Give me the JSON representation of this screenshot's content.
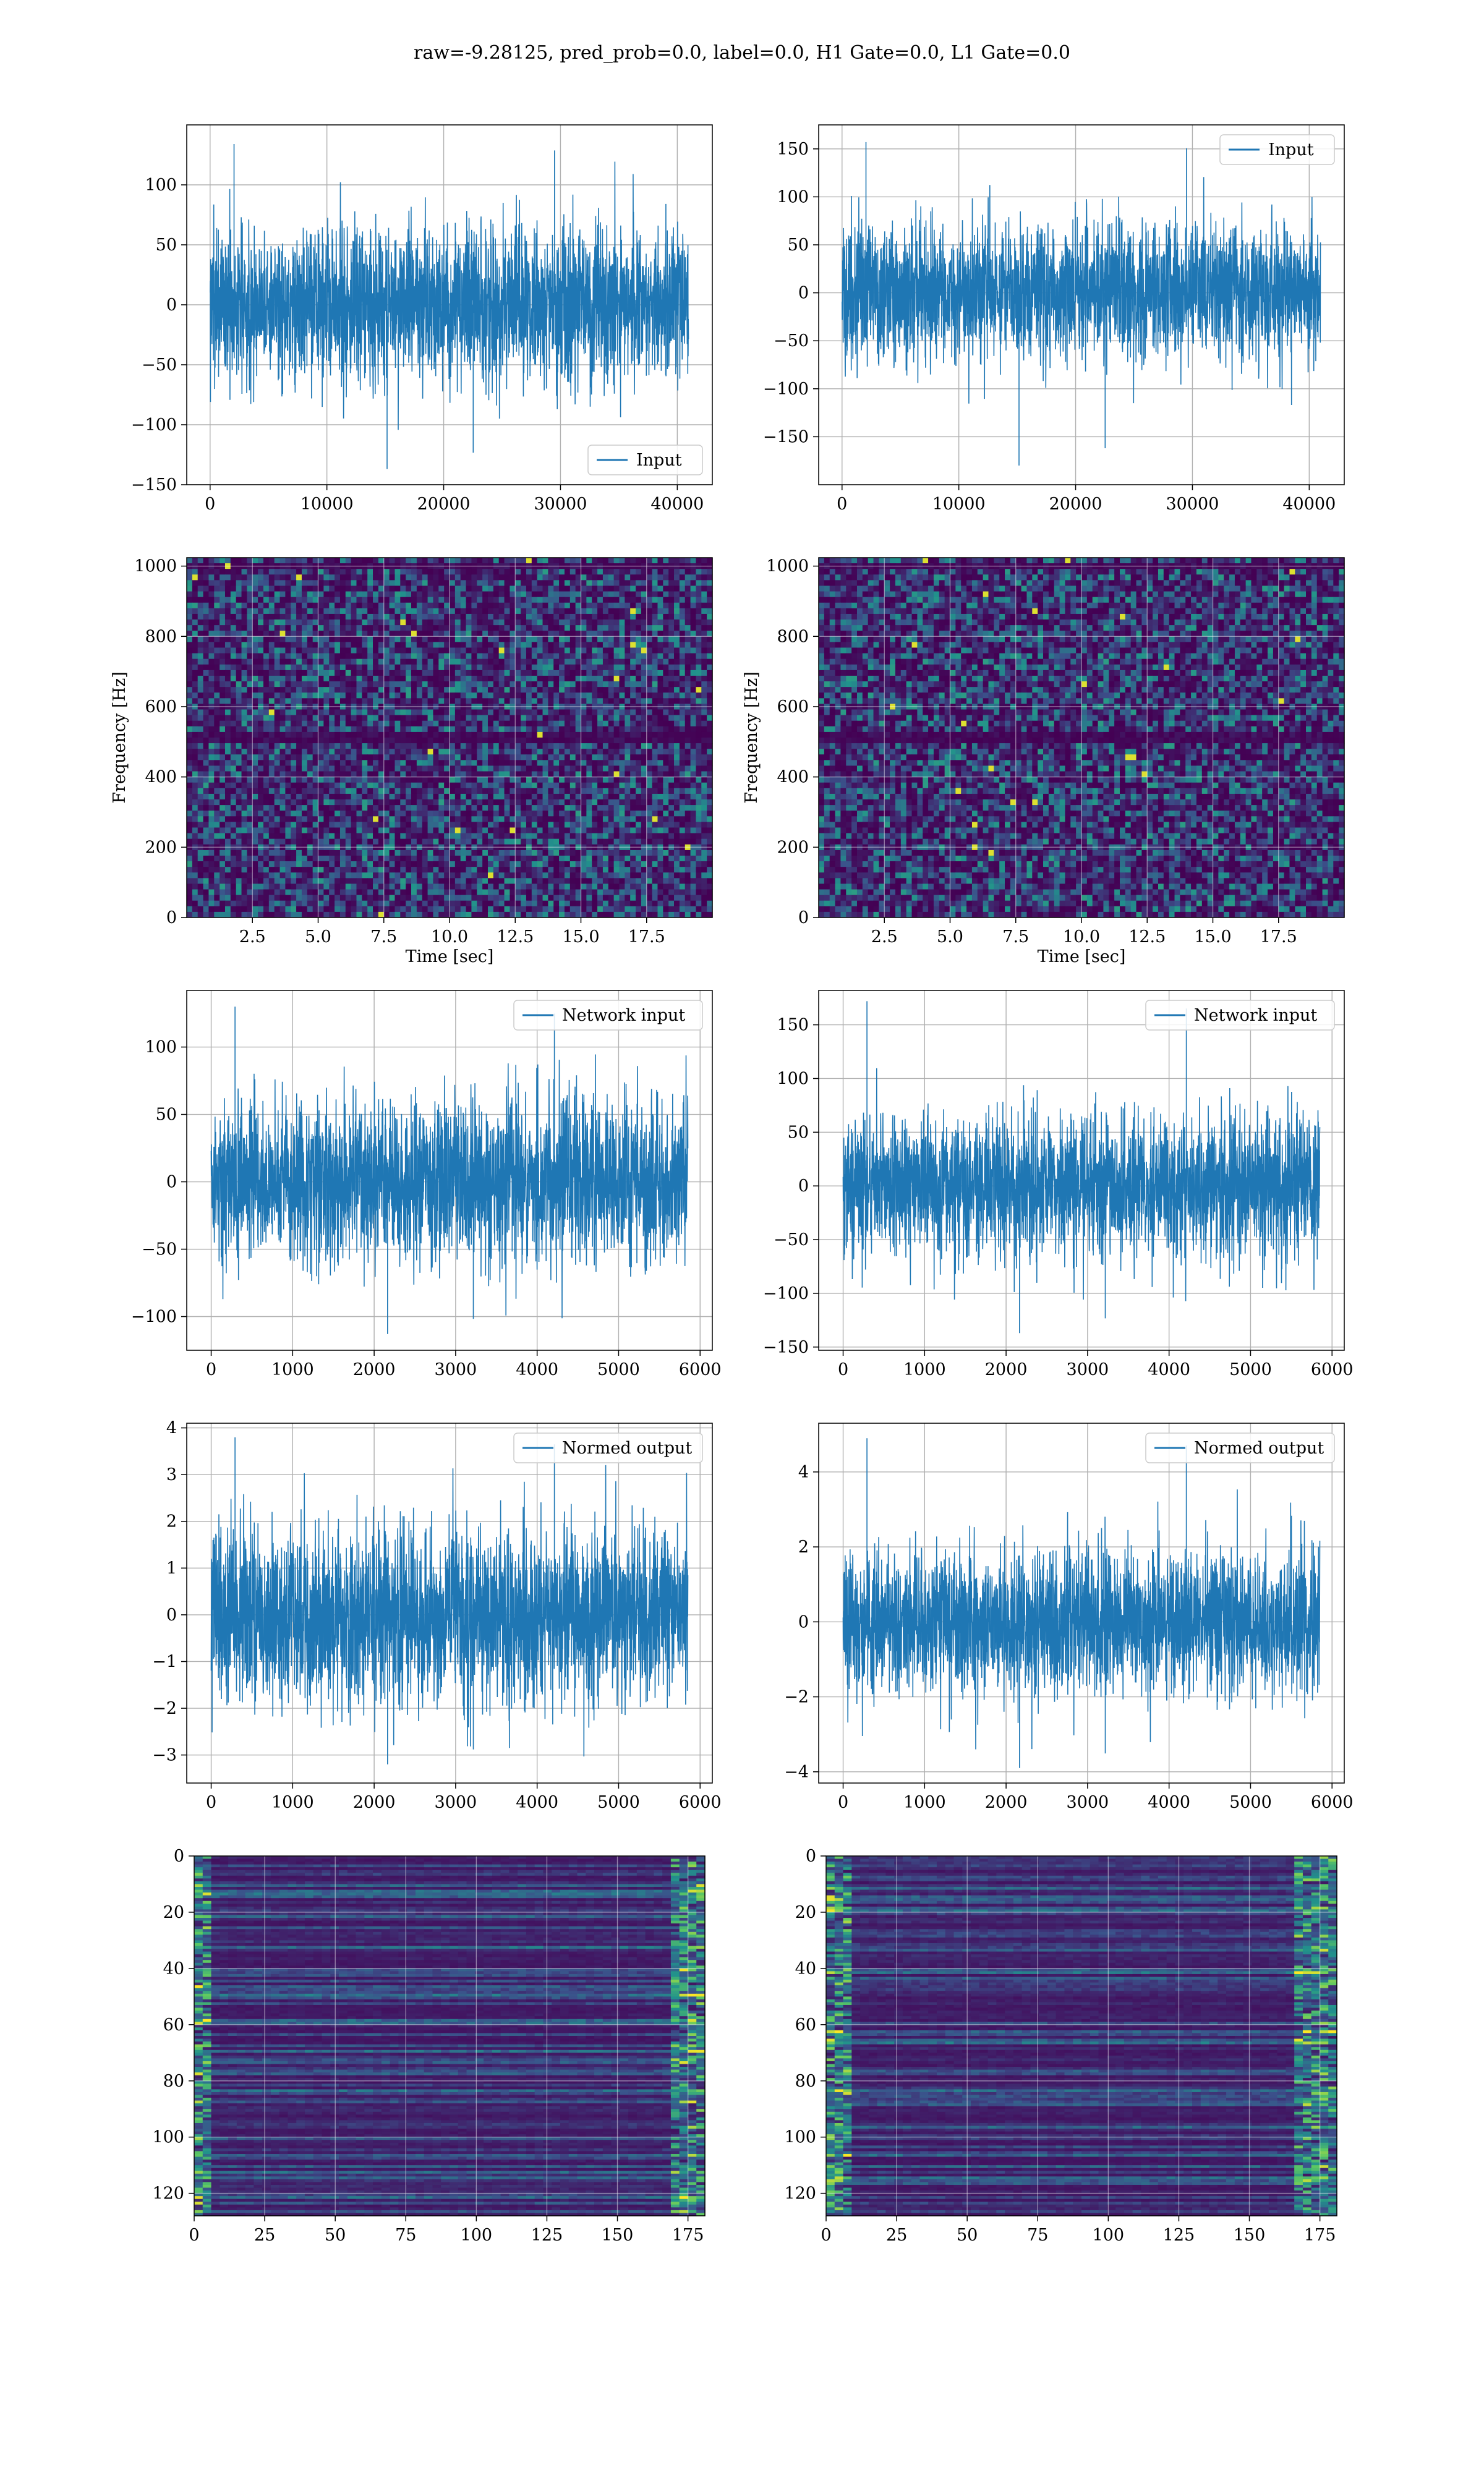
{
  "figure": {
    "title": "raw=-9.28125, pred_prob=0.0, label=0.0, H1 Gate=0.0, L1 Gate=0.0"
  },
  "colors": {
    "line": "#1f77b4",
    "grid": "#b0b0b0",
    "viridis_dark": "#440154",
    "viridis_low": "#3b0f70",
    "viridis_mid": "#21918c",
    "viridis_high": "#5ec962",
    "viridis_peak": "#fde725"
  },
  "chart_data": [
    {
      "id": "h1-input",
      "type": "line",
      "series": [
        {
          "name": "Input",
          "amplitude_std": 32,
          "x_range": [
            0,
            40960
          ],
          "y_extremes": [
            -137,
            134
          ]
        }
      ],
      "xlim": [
        -2000,
        43000
      ],
      "ylim": [
        -150,
        150
      ],
      "xticks": [
        0,
        10000,
        20000,
        30000,
        40000
      ],
      "xtick_labels": [
        "0",
        "10000",
        "20000",
        "30000",
        "40000"
      ],
      "yticks": [
        -150,
        -100,
        -50,
        0,
        50,
        100
      ],
      "ytick_labels": [
        "−150",
        "−100",
        "−50",
        "0",
        "50",
        "100"
      ],
      "legend": "lower-right",
      "grid": true,
      "xlabel": "",
      "ylabel": ""
    },
    {
      "id": "l1-input",
      "type": "line",
      "series": [
        {
          "name": "Input",
          "amplitude_std": 35,
          "x_range": [
            0,
            40960
          ],
          "y_extremes": [
            -180,
            157
          ]
        }
      ],
      "xlim": [
        -2000,
        43000
      ],
      "ylim": [
        -200,
        175
      ],
      "xticks": [
        0,
        10000,
        20000,
        30000,
        40000
      ],
      "xtick_labels": [
        "0",
        "10000",
        "20000",
        "30000",
        "40000"
      ],
      "yticks": [
        -150,
        -100,
        -50,
        0,
        50,
        100,
        150
      ],
      "ytick_labels": [
        "−150",
        "−100",
        "−50",
        "0",
        "50",
        "100",
        "150"
      ],
      "legend": "upper-right",
      "grid": true,
      "xlabel": "",
      "ylabel": ""
    },
    {
      "id": "h1-spectrogram",
      "type": "heatmap",
      "colormap": "viridis",
      "xlim": [
        0,
        20
      ],
      "ylim": [
        0,
        1024
      ],
      "xticks": [
        2.5,
        5.0,
        7.5,
        10.0,
        12.5,
        15.0,
        17.5
      ],
      "xtick_labels": [
        "2.5",
        "5.0",
        "7.5",
        "10.0",
        "12.5",
        "15.0",
        "17.5"
      ],
      "yticks": [
        0,
        200,
        400,
        600,
        800,
        1000
      ],
      "ytick_labels": [
        "0",
        "200",
        "400",
        "600",
        "800",
        "1000"
      ],
      "dark_bands_hz": [
        510,
        1000
      ],
      "xlabel": "Time [sec]",
      "ylabel": "Frequency [Hz]",
      "grid": true
    },
    {
      "id": "l1-spectrogram",
      "type": "heatmap",
      "colormap": "viridis",
      "xlim": [
        0,
        20
      ],
      "ylim": [
        0,
        1024
      ],
      "xticks": [
        2.5,
        5.0,
        7.5,
        10.0,
        12.5,
        15.0,
        17.5
      ],
      "xtick_labels": [
        "2.5",
        "5.0",
        "7.5",
        "10.0",
        "12.5",
        "15.0",
        "17.5"
      ],
      "yticks": [
        0,
        200,
        400,
        600,
        800,
        1000
      ],
      "ytick_labels": [
        "0",
        "200",
        "400",
        "600",
        "800",
        "1000"
      ],
      "dark_bands_hz": [
        510,
        1000
      ],
      "xlabel": "Time [sec]",
      "ylabel": "Frequency [Hz]",
      "grid": true
    },
    {
      "id": "h1-network-input",
      "type": "line",
      "series": [
        {
          "name": "Network input",
          "amplitude_std": 30,
          "x_range": [
            0,
            5850
          ],
          "y_extremes": [
            -113,
            130
          ]
        }
      ],
      "xlim": [
        -300,
        6150
      ],
      "ylim": [
        -125,
        142
      ],
      "xticks": [
        0,
        1000,
        2000,
        3000,
        4000,
        5000,
        6000
      ],
      "xtick_labels": [
        "0",
        "1000",
        "2000",
        "3000",
        "4000",
        "5000",
        "6000"
      ],
      "yticks": [
        -100,
        -50,
        0,
        50,
        100
      ],
      "ytick_labels": [
        "−100",
        "−50",
        "0",
        "50",
        "100"
      ],
      "legend": "upper-right",
      "grid": true,
      "xlabel": "",
      "ylabel": ""
    },
    {
      "id": "l1-network-input",
      "type": "line",
      "series": [
        {
          "name": "Network input",
          "amplitude_std": 32,
          "x_range": [
            0,
            5850
          ],
          "y_extremes": [
            -137,
            172
          ]
        }
      ],
      "xlim": [
        -300,
        6150
      ],
      "ylim": [
        -153,
        182
      ],
      "xticks": [
        0,
        1000,
        2000,
        3000,
        4000,
        5000,
        6000
      ],
      "xtick_labels": [
        "0",
        "1000",
        "2000",
        "3000",
        "4000",
        "5000",
        "6000"
      ],
      "yticks": [
        -150,
        -100,
        -50,
        0,
        50,
        100,
        150
      ],
      "ytick_labels": [
        "−150",
        "−100",
        "−50",
        "0",
        "50",
        "100",
        "150"
      ],
      "legend": "upper-right",
      "grid": true,
      "xlabel": "",
      "ylabel": ""
    },
    {
      "id": "h1-normed-output",
      "type": "line",
      "series": [
        {
          "name": "Normed output",
          "amplitude_std": 0.95,
          "x_range": [
            0,
            5850
          ],
          "y_extremes": [
            -3.2,
            3.8
          ]
        }
      ],
      "xlim": [
        -300,
        6150
      ],
      "ylim": [
        -3.6,
        4.1
      ],
      "xticks": [
        0,
        1000,
        2000,
        3000,
        4000,
        5000,
        6000
      ],
      "xtick_labels": [
        "0",
        "1000",
        "2000",
        "3000",
        "4000",
        "5000",
        "6000"
      ],
      "yticks": [
        -3,
        -2,
        -1,
        0,
        1,
        2,
        3,
        4
      ],
      "ytick_labels": [
        "−3",
        "−2",
        "−1",
        "0",
        "1",
        "2",
        "3",
        "4"
      ],
      "legend": "upper-right",
      "grid": true,
      "xlabel": "",
      "ylabel": ""
    },
    {
      "id": "l1-normed-output",
      "type": "line",
      "series": [
        {
          "name": "Normed output",
          "amplitude_std": 0.95,
          "x_range": [
            0,
            5850
          ],
          "y_extremes": [
            -3.9,
            4.9
          ]
        }
      ],
      "xlim": [
        -300,
        6150
      ],
      "ylim": [
        -4.3,
        5.3
      ],
      "xticks": [
        0,
        1000,
        2000,
        3000,
        4000,
        5000,
        6000
      ],
      "xtick_labels": [
        "0",
        "1000",
        "2000",
        "3000",
        "4000",
        "5000",
        "6000"
      ],
      "yticks": [
        -4,
        -2,
        0,
        2,
        4
      ],
      "ytick_labels": [
        "−4",
        "−2",
        "0",
        "2",
        "4"
      ],
      "legend": "upper-right",
      "grid": true,
      "xlabel": "",
      "ylabel": ""
    },
    {
      "id": "h1-feature-map",
      "type": "heatmap",
      "colormap": "viridis",
      "xlim": [
        0,
        181
      ],
      "ylim": [
        128,
        0
      ],
      "xticks": [
        0,
        25,
        50,
        75,
        100,
        125,
        150,
        175
      ],
      "xtick_labels": [
        "0",
        "25",
        "50",
        "75",
        "100",
        "125",
        "150",
        "175"
      ],
      "yticks": [
        0,
        20,
        40,
        60,
        80,
        100,
        120
      ],
      "ytick_labels": [
        "0",
        "20",
        "40",
        "60",
        "80",
        "100",
        "120"
      ],
      "bright_columns": [
        [
          0,
          6
        ],
        [
          170,
          181
        ]
      ],
      "xlabel": "",
      "ylabel": "",
      "grid": true
    },
    {
      "id": "l1-feature-map",
      "type": "heatmap",
      "colormap": "viridis",
      "xlim": [
        0,
        181
      ],
      "ylim": [
        128,
        0
      ],
      "xticks": [
        0,
        25,
        50,
        75,
        100,
        125,
        150,
        175
      ],
      "xtick_labels": [
        "0",
        "25",
        "50",
        "75",
        "100",
        "125",
        "150",
        "175"
      ],
      "yticks": [
        0,
        20,
        40,
        60,
        80,
        100,
        120
      ],
      "ytick_labels": [
        "0",
        "20",
        "40",
        "60",
        "80",
        "100",
        "120"
      ],
      "bright_columns": [
        [
          0,
          8
        ],
        [
          165,
          181
        ]
      ],
      "xlabel": "",
      "ylabel": "",
      "grid": true
    }
  ]
}
